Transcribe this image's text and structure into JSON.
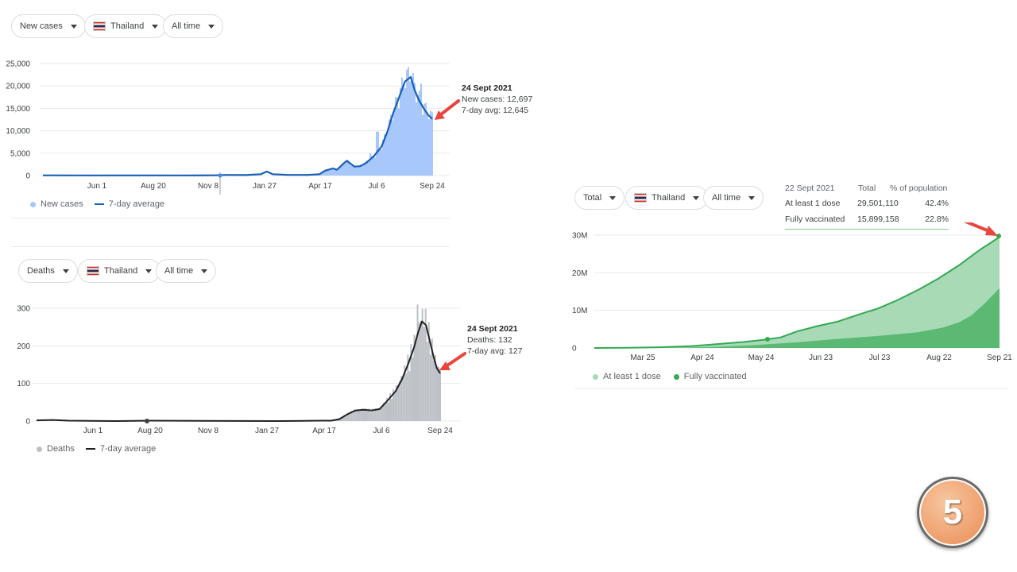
{
  "colors": {
    "cases_bar": "#a8c7fa",
    "cases_line": "#1a5fb4",
    "deaths_bar": "#bdc1c6",
    "deaths_line": "#202124",
    "vacc_light": "#a8dab5",
    "vacc_dark": "#5bb974",
    "vacc_line": "#34a853",
    "arrow": "#e8453c"
  },
  "cases_panel": {
    "filters": {
      "metric": "New cases",
      "country": "Thailand",
      "range": "All time"
    },
    "legend": {
      "bar": "New cases",
      "line": "7-day average"
    },
    "annotation": {
      "date": "24 Sept 2021",
      "line1": "New cases: 12,697",
      "line2": "7-day avg: 12,645"
    }
  },
  "deaths_panel": {
    "filters": {
      "metric": "Deaths",
      "country": "Thailand",
      "range": "All time"
    },
    "legend": {
      "bar": "Deaths",
      "line": "7-day average"
    },
    "annotation": {
      "date": "24 Sept 2021",
      "line1": "Deaths: 132",
      "line2": "7-day avg: 127"
    }
  },
  "vacc_panel": {
    "filters": {
      "metric": "Total",
      "country": "Thailand",
      "range": "All time"
    },
    "legend": {
      "a": "At least 1 dose",
      "b": "Fully vaccinated"
    },
    "table": {
      "header": [
        "22 Sept 2021",
        "Total",
        "% of population"
      ],
      "rows": [
        [
          "At least 1 dose",
          "29,501,110",
          "42.4%"
        ],
        [
          "Fully vaccinated",
          "15,899,158",
          "22.8%"
        ]
      ]
    }
  },
  "badge": {
    "number": "5"
  },
  "chart_data": [
    {
      "type": "bar",
      "title": "",
      "ylim": [
        0,
        25000
      ],
      "ytick_labels": [
        "0",
        "5,000",
        "10,000",
        "15,000",
        "20,000",
        "25,000"
      ],
      "xtick_labels": [
        "Jun 1",
        "Aug 20",
        "Nov 8",
        "Jan 27",
        "Apr 17",
        "Jul 6",
        "Sep 24"
      ],
      "series": [
        {
          "name": "New cases",
          "kind": "bar"
        },
        {
          "name": "7-day average",
          "kind": "line",
          "points": [
            [
              0,
              50
            ],
            [
              0.12,
              40
            ],
            [
              0.24,
              30
            ],
            [
              0.36,
              40
            ],
            [
              0.44,
              60
            ],
            [
              0.47,
              150
            ],
            [
              0.52,
              100
            ],
            [
              0.56,
              300
            ],
            [
              0.575,
              900
            ],
            [
              0.59,
              300
            ],
            [
              0.63,
              150
            ],
            [
              0.68,
              150
            ],
            [
              0.71,
              300
            ],
            [
              0.725,
              1100
            ],
            [
              0.745,
              1600
            ],
            [
              0.755,
              1300
            ],
            [
              0.765,
              2100
            ],
            [
              0.78,
              3300
            ],
            [
              0.79,
              2700
            ],
            [
              0.8,
              2000
            ],
            [
              0.815,
              2100
            ],
            [
              0.83,
              2800
            ],
            [
              0.85,
              4300
            ],
            [
              0.87,
              6500
            ],
            [
              0.885,
              9800
            ],
            [
              0.9,
              14000
            ],
            [
              0.915,
              17500
            ],
            [
              0.93,
              21000
            ],
            [
              0.945,
              22000
            ],
            [
              0.955,
              19000
            ],
            [
              0.965,
              17000
            ],
            [
              0.978,
              15000
            ],
            [
              0.99,
              13500
            ],
            [
              1,
              12645
            ]
          ]
        }
      ]
    },
    {
      "type": "bar",
      "title": "",
      "ylim": [
        0,
        300
      ],
      "ytick_labels": [
        "0",
        "100",
        "200",
        "300"
      ],
      "xtick_labels": [
        "Jun 1",
        "Aug 20",
        "Nov 8",
        "Jan 27",
        "Apr 17",
        "Jul 6",
        "Sep 24"
      ],
      "series": [
        {
          "name": "Deaths",
          "kind": "bar"
        },
        {
          "name": "7-day average",
          "kind": "line",
          "points": [
            [
              0,
              2
            ],
            [
              0.04,
              3
            ],
            [
              0.08,
              1
            ],
            [
              0.2,
              0
            ],
            [
              0.28,
              1
            ],
            [
              0.6,
              0
            ],
            [
              0.7,
              1
            ],
            [
              0.73,
              1
            ],
            [
              0.75,
              5
            ],
            [
              0.77,
              18
            ],
            [
              0.79,
              28
            ],
            [
              0.81,
              30
            ],
            [
              0.83,
              28
            ],
            [
              0.85,
              32
            ],
            [
              0.87,
              55
            ],
            [
              0.89,
              80
            ],
            [
              0.905,
              110
            ],
            [
              0.92,
              150
            ],
            [
              0.935,
              195
            ],
            [
              0.945,
              235
            ],
            [
              0.955,
              265
            ],
            [
              0.965,
              255
            ],
            [
              0.975,
              210
            ],
            [
              0.985,
              165
            ],
            [
              0.992,
              140
            ],
            [
              1,
              127
            ]
          ]
        }
      ]
    },
    {
      "type": "area",
      "title": "",
      "ylim": [
        0,
        30000000
      ],
      "ytick_labels": [
        "0",
        "10M",
        "20M",
        "30M"
      ],
      "xtick_labels": [
        "Mar 25",
        "Apr 24",
        "May 24",
        "Jun 23",
        "Jul 23",
        "Aug 22",
        "Sep 21"
      ],
      "series": [
        {
          "name": "At least 1 dose",
          "points": [
            [
              0,
              0
            ],
            [
              0.08,
              50000
            ],
            [
              0.16,
              200000
            ],
            [
              0.24,
              500000
            ],
            [
              0.3,
              1000000
            ],
            [
              0.37,
              1600000
            ],
            [
              0.42,
              2200000
            ],
            [
              0.46,
              2800000
            ],
            [
              0.5,
              4400000
            ],
            [
              0.55,
              5800000
            ],
            [
              0.6,
              7000000
            ],
            [
              0.65,
              8800000
            ],
            [
              0.7,
              10500000
            ],
            [
              0.75,
              12800000
            ],
            [
              0.8,
              15500000
            ],
            [
              0.85,
              18500000
            ],
            [
              0.9,
              22000000
            ],
            [
              0.95,
              26000000
            ],
            [
              1,
              29501110
            ]
          ]
        },
        {
          "name": "Fully vaccinated",
          "points": [
            [
              0,
              0
            ],
            [
              0.1,
              0
            ],
            [
              0.2,
              50000
            ],
            [
              0.3,
              300000
            ],
            [
              0.4,
              800000
            ],
            [
              0.5,
              1500000
            ],
            [
              0.6,
              2400000
            ],
            [
              0.7,
              3200000
            ],
            [
              0.8,
              4200000
            ],
            [
              0.86,
              5400000
            ],
            [
              0.9,
              6800000
            ],
            [
              0.93,
              8600000
            ],
            [
              0.96,
              11500000
            ],
            [
              1,
              15899158
            ]
          ]
        }
      ]
    }
  ]
}
